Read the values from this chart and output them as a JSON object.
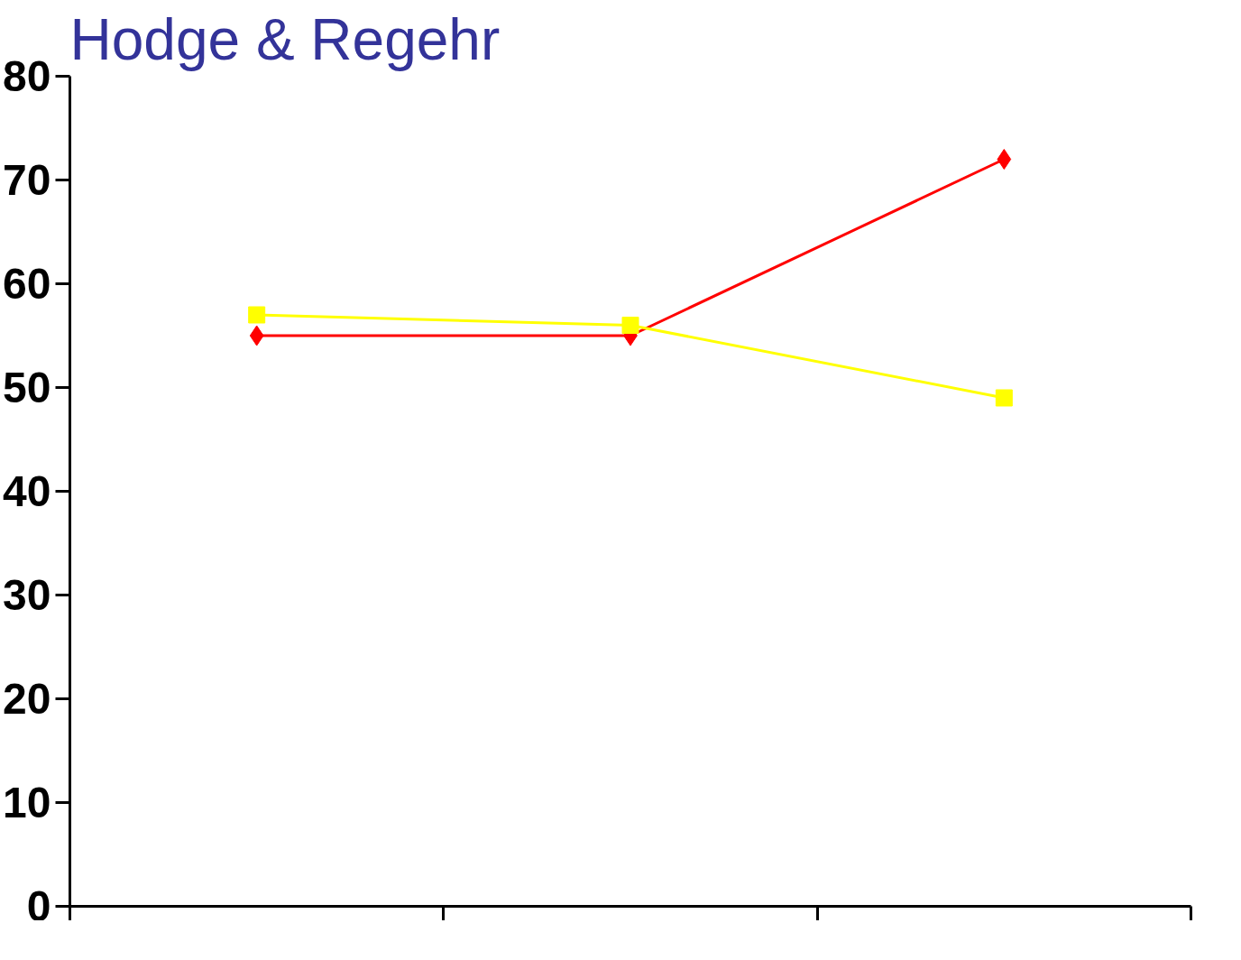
{
  "chart_data": {
    "type": "line",
    "title": "Hodge & Regehr",
    "categories": [
      null,
      null,
      null
    ],
    "series": [
      {
        "color": "#ff0000",
        "values": [
          55,
          55,
          72
        ],
        "marker": "diamond"
      },
      {
        "color": "#ffff00",
        "values": [
          57,
          56,
          49
        ],
        "marker": "square"
      }
    ],
    "ylim": [
      0,
      80
    ],
    "yticks": [
      0,
      10,
      20,
      30,
      40,
      50,
      60,
      70,
      80
    ],
    "grid": false,
    "tick_labels": "y",
    "line_style": "solid"
  }
}
